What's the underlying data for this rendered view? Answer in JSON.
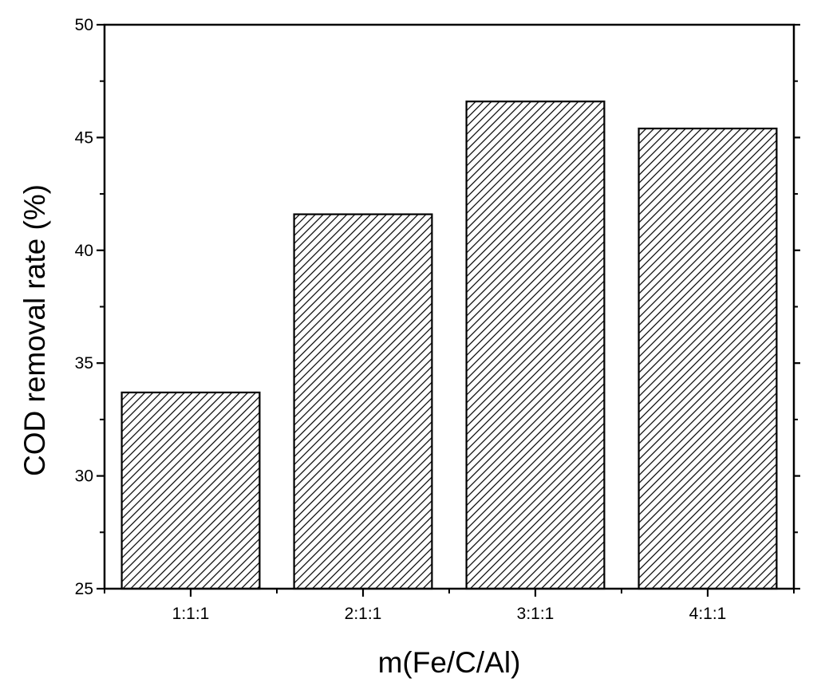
{
  "chart_data": {
    "type": "bar",
    "title": "",
    "xlabel": "m(Fe/C/Al)",
    "ylabel": "COD removal rate (%)",
    "categories": [
      "1:1:1",
      "2:1:1",
      "3:1:1",
      "4:1:1"
    ],
    "values": [
      33.7,
      41.6,
      46.6,
      45.4
    ],
    "ylim": [
      25,
      50
    ],
    "yticks": [
      25,
      30,
      35,
      40,
      45,
      50
    ],
    "grid": false,
    "legend": "none",
    "bar_fill": "hatched",
    "colors": {
      "bar_edge": "#000000",
      "hatch": "#000000",
      "background": "#ffffff"
    }
  }
}
